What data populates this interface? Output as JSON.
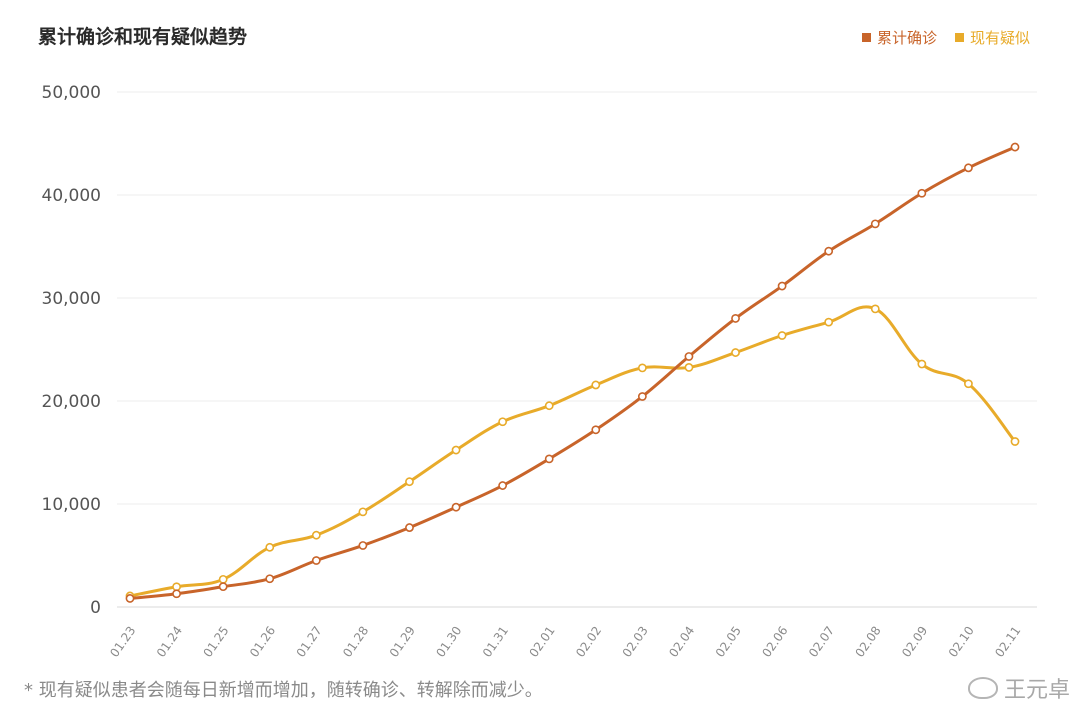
{
  "chart_data": {
    "type": "line",
    "title": "累计确诊和现有疑似趋势",
    "xlabel": "",
    "ylabel": "",
    "ylim": [
      0,
      50000
    ],
    "yticks": [
      0,
      10000,
      20000,
      30000,
      40000,
      50000
    ],
    "ytick_labels": [
      "0",
      "10,000",
      "20,000",
      "30,000",
      "40,000",
      "50,000"
    ],
    "grid": true,
    "legend_position": "top-right",
    "categories": [
      "01.23",
      "01.24",
      "01.25",
      "01.26",
      "01.27",
      "01.28",
      "01.29",
      "01.30",
      "01.31",
      "02.01",
      "02.02",
      "02.03",
      "02.04",
      "02.05",
      "02.06",
      "02.07",
      "02.08",
      "02.09",
      "02.10",
      "02.11"
    ],
    "series": [
      {
        "name": "累计确诊",
        "color": "#c8642a",
        "values": [
          830,
          1287,
          1975,
          2744,
          4515,
          5974,
          7711,
          9692,
          11791,
          14380,
          17205,
          20438,
          24324,
          28018,
          31161,
          34546,
          37198,
          40171,
          42638,
          44653
        ]
      },
      {
        "name": "现有疑似",
        "color": "#e8ab2a",
        "values": [
          1072,
          1965,
          2684,
          5794,
          6973,
          9239,
          12167,
          15238,
          17988,
          19544,
          21558,
          23214,
          23260,
          24702,
          26359,
          27657,
          28942,
          23589,
          21675,
          16067
        ]
      }
    ]
  },
  "footnote": "* 现有疑似患者会随每日新增而增加，随转确诊、转解除而减少。",
  "watermark": "王元卓"
}
